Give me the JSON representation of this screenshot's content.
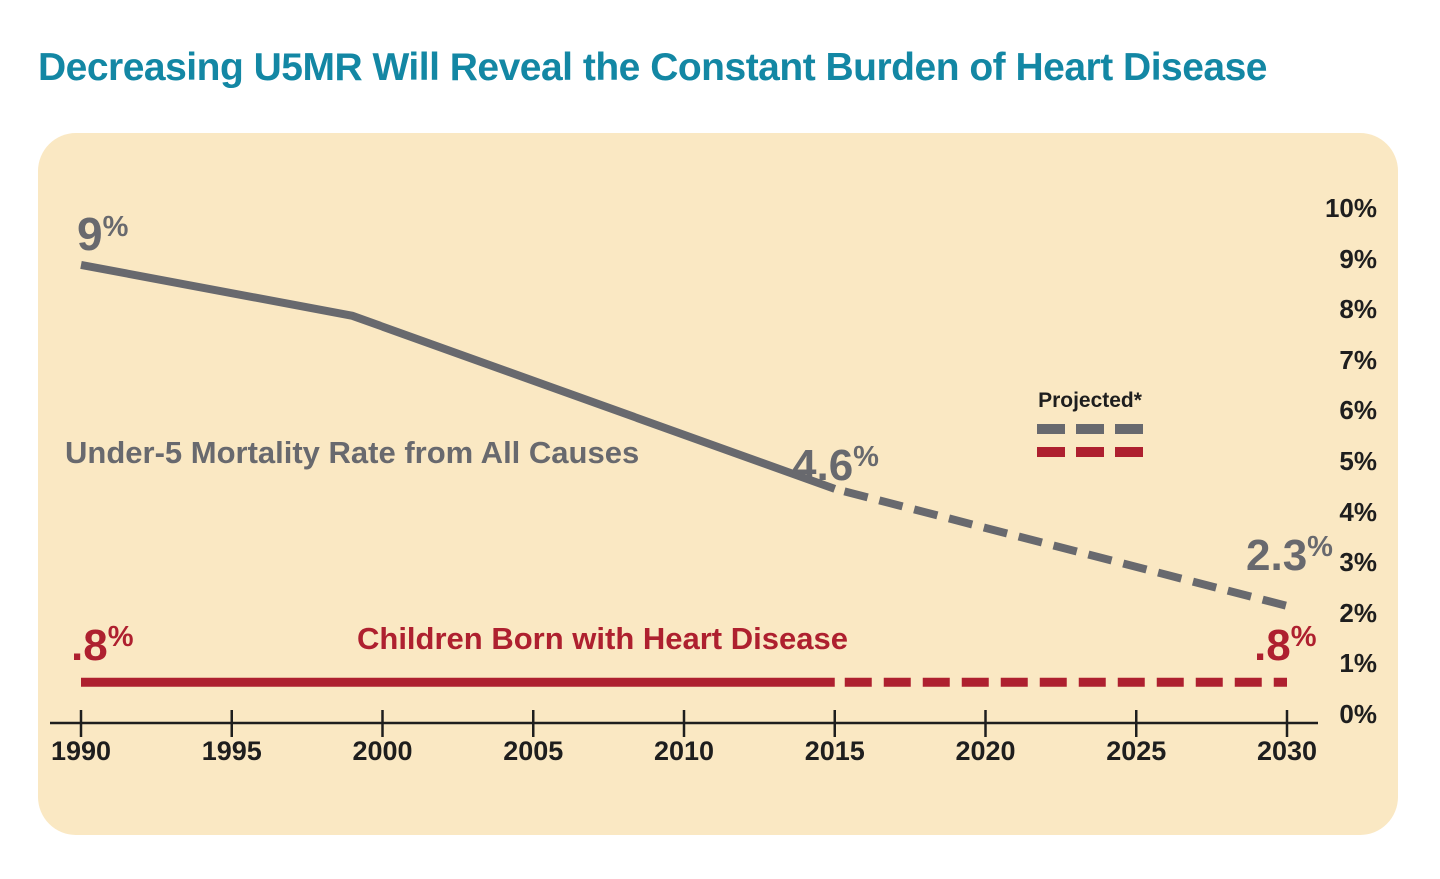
{
  "page": {
    "title": "Decreasing U5MR Will Reveal the Constant Burden of Heart Disease"
  },
  "colors": {
    "title_teal": "#1387A4",
    "panel_cream": "#FAE8C3",
    "gray_series": "#68696E",
    "red_series": "#AE202F",
    "axis_black": "#1E1E1E"
  },
  "chart_data": {
    "type": "line",
    "title": "Decreasing U5MR Will Reveal the Constant Burden of Heart Disease",
    "xlabel": "",
    "ylabel": "",
    "x_range": [
      1990,
      2030
    ],
    "y_range_percent": [
      0,
      10
    ],
    "grid": false,
    "x_ticks": [
      {
        "label": "1990",
        "value": 1990
      },
      {
        "label": "1995",
        "value": 1995
      },
      {
        "label": "2000",
        "value": 2000
      },
      {
        "label": "2005",
        "value": 2005
      },
      {
        "label": "2010",
        "value": 2010
      },
      {
        "label": "2015",
        "value": 2015
      },
      {
        "label": "2020",
        "value": 2020
      },
      {
        "label": "2025",
        "value": 2025
      },
      {
        "label": "2030",
        "value": 2030
      }
    ],
    "y_ticks": [
      {
        "label": "10%",
        "value": 10
      },
      {
        "label": "9%",
        "value": 9
      },
      {
        "label": "8%",
        "value": 8
      },
      {
        "label": "7%",
        "value": 7
      },
      {
        "label": "6%",
        "value": 6
      },
      {
        "label": "5%",
        "value": 5
      },
      {
        "label": "4%",
        "value": 4
      },
      {
        "label": "3%",
        "value": 3
      },
      {
        "label": "2%",
        "value": 2
      },
      {
        "label": "1%",
        "value": 1
      },
      {
        "label": "0%",
        "value": 0
      }
    ],
    "legend": {
      "label": "Projected*",
      "position": "right-middle",
      "meaning": "dashed segments are projected values"
    },
    "series": [
      {
        "name": "Under-5 Mortality Rate from All Causes",
        "color": "#68696E",
        "solid_points": [
          [
            1990,
            9
          ],
          [
            1999,
            8
          ],
          [
            2015,
            4.6
          ]
        ],
        "dashed_points": [
          [
            2015,
            4.6
          ],
          [
            2030,
            2.3
          ]
        ]
      },
      {
        "name": "Children Born with Heart Disease",
        "color": "#AE202F",
        "solid_points": [
          [
            1990,
            0.8
          ],
          [
            2015,
            0.8
          ]
        ],
        "dashed_points": [
          [
            2015,
            0.8
          ],
          [
            2030,
            0.8
          ]
        ]
      }
    ],
    "annotations": {
      "u5mr_1990": {
        "main": "9",
        "sup": "%"
      },
      "u5mr_2015": {
        "main": "4.6",
        "sup": "%"
      },
      "u5mr_2030": {
        "main": "2.3",
        "sup": "%"
      },
      "chd_1990": {
        "main": ".8",
        "sup": "%"
      },
      "chd_2030": {
        "main": ".8",
        "sup": "%"
      },
      "gray_series_label": "Under-5 Mortality Rate from All Causes",
      "red_series_label": "Children Born with Heart Disease"
    }
  }
}
